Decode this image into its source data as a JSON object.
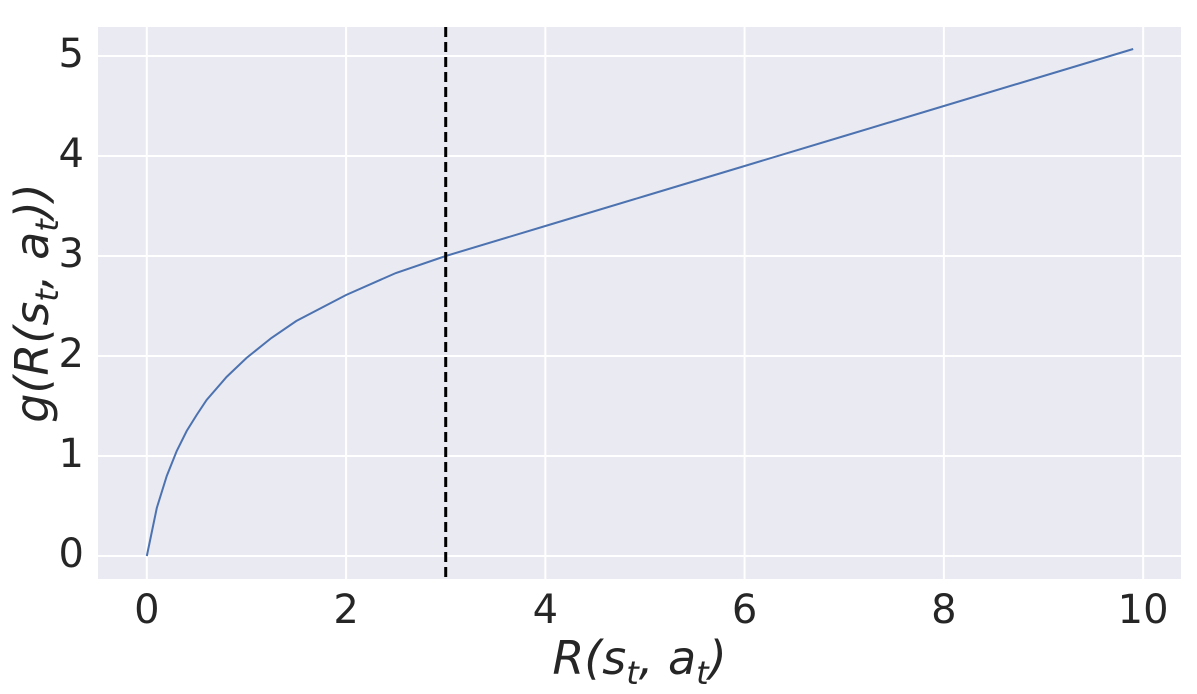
{
  "chart_data": {
    "type": "line",
    "xlabel": [
      "R(s",
      "t",
      ", a",
      "t",
      ")"
    ],
    "ylabel": [
      "g(R(s",
      "t",
      ", a",
      "t",
      "))"
    ],
    "x": [
      0,
      0.1,
      0.2,
      0.3,
      0.4,
      0.5,
      0.6,
      0.8,
      1,
      1.25,
      1.5,
      2,
      2.5,
      3,
      4,
      5,
      6,
      7,
      8,
      9,
      9.9
    ],
    "series": [
      {
        "color": "#4c72b0",
        "values": [
          0,
          0.48,
          0.8,
          1.05,
          1.25,
          1.41,
          1.56,
          1.79,
          1.98,
          2.18,
          2.35,
          2.61,
          2.83,
          3.0,
          3.3,
          3.6,
          3.9,
          4.2,
          4.5,
          4.8,
          5.07
        ]
      }
    ],
    "vline": 3,
    "xlim": [
      -0.49,
      10.38
    ],
    "ylim": [
      -0.23,
      5.29
    ],
    "xticks": [
      0,
      2,
      4,
      6,
      8,
      10
    ],
    "yticks": [
      0,
      1,
      2,
      3,
      4,
      5
    ],
    "grid": true
  }
}
